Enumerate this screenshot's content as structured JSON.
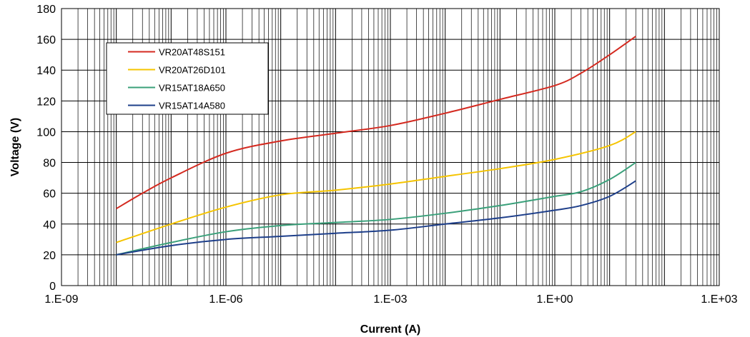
{
  "chart_data": {
    "type": "line",
    "xscale": "log",
    "xlabel": "Current (A)",
    "ylabel": "Voltage (V)",
    "xlim": [
      1e-09,
      1000
    ],
    "ylim": [
      0,
      180
    ],
    "x_tick_labels": [
      "1.E-09",
      "1.E-06",
      "1.E-03",
      "1.E+00",
      "1.E+03"
    ],
    "y_tick_labels": [
      "0",
      "20",
      "40",
      "60",
      "80",
      "100",
      "120",
      "140",
      "160",
      "180"
    ],
    "grid": true,
    "legend_position": "top-left",
    "series": [
      {
        "name": "VR20AT48S151",
        "color": "#d42a20",
        "points": [
          [
            1e-08,
            50
          ],
          [
            3e-08,
            60
          ],
          [
            1e-07,
            70
          ],
          [
            1e-06,
            86
          ],
          [
            1e-05,
            94
          ],
          [
            0.0001,
            99
          ],
          [
            0.001,
            104
          ],
          [
            0.01,
            112
          ],
          [
            0.1,
            121
          ],
          [
            1,
            130
          ],
          [
            3,
            138
          ],
          [
            10,
            150
          ],
          [
            30,
            162
          ]
        ]
      },
      {
        "name": "VR20AT26D101",
        "color": "#f5c400",
        "points": [
          [
            1e-08,
            28
          ],
          [
            1e-07,
            40
          ],
          [
            1e-06,
            51
          ],
          [
            1e-05,
            59
          ],
          [
            0.0001,
            62
          ],
          [
            0.001,
            66
          ],
          [
            0.01,
            71
          ],
          [
            0.1,
            76
          ],
          [
            1,
            82
          ],
          [
            10,
            91
          ],
          [
            30,
            100
          ]
        ]
      },
      {
        "name": "VR15AT18A650",
        "color": "#3aa07a",
        "points": [
          [
            1e-08,
            20
          ],
          [
            1e-07,
            28
          ],
          [
            1e-06,
            35
          ],
          [
            1e-05,
            39
          ],
          [
            0.0001,
            41
          ],
          [
            0.001,
            43
          ],
          [
            0.01,
            47
          ],
          [
            0.1,
            52
          ],
          [
            1,
            58
          ],
          [
            3,
            61
          ],
          [
            10,
            69
          ],
          [
            30,
            80
          ]
        ]
      },
      {
        "name": "VR15AT14A580",
        "color": "#1e3f8a",
        "points": [
          [
            1e-08,
            20
          ],
          [
            1e-07,
            26
          ],
          [
            1e-06,
            30
          ],
          [
            1e-05,
            32
          ],
          [
            0.0001,
            34
          ],
          [
            0.001,
            36
          ],
          [
            0.01,
            40
          ],
          [
            0.1,
            44
          ],
          [
            1,
            49
          ],
          [
            3,
            52
          ],
          [
            10,
            58
          ],
          [
            30,
            68
          ]
        ]
      }
    ]
  }
}
